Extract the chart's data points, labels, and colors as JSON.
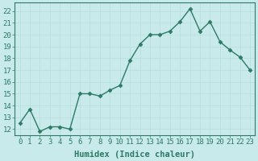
{
  "x": [
    0,
    1,
    2,
    3,
    4,
    5,
    6,
    7,
    8,
    9,
    10,
    11,
    12,
    13,
    14,
    15,
    16,
    17,
    18,
    19,
    20,
    21,
    22,
    23
  ],
  "y": [
    12.5,
    13.7,
    11.8,
    12.2,
    12.2,
    12.0,
    15.0,
    15.0,
    14.8,
    15.3,
    15.7,
    17.8,
    19.2,
    20.0,
    20.0,
    20.3,
    21.1,
    22.2,
    20.3,
    21.1,
    19.4,
    18.7,
    18.1,
    17.0
  ],
  "line_color": "#2d7a65",
  "marker": "D",
  "marker_size": 2.5,
  "bg_color": "#c8eaea",
  "grid_major_color": "#b8dcdc",
  "grid_minor_color": "#d0e8e8",
  "tick_color": "#2d7a65",
  "spine_color": "#2d7a65",
  "xlabel": "Humidex (Indice chaleur)",
  "ylabel_ticks": [
    12,
    13,
    14,
    15,
    16,
    17,
    18,
    19,
    20,
    21,
    22
  ],
  "ylim": [
    11.5,
    22.7
  ],
  "xlim": [
    -0.5,
    23.5
  ],
  "xtick_labels": [
    "0",
    "1",
    "2",
    "3",
    "4",
    "5",
    "6",
    "7",
    "8",
    "9",
    "10",
    "11",
    "12",
    "13",
    "14",
    "15",
    "16",
    "17",
    "18",
    "19",
    "20",
    "21",
    "22",
    "23"
  ],
  "tick_fontsize": 6.5,
  "xlabel_fontsize": 7.5,
  "linewidth": 1.0
}
